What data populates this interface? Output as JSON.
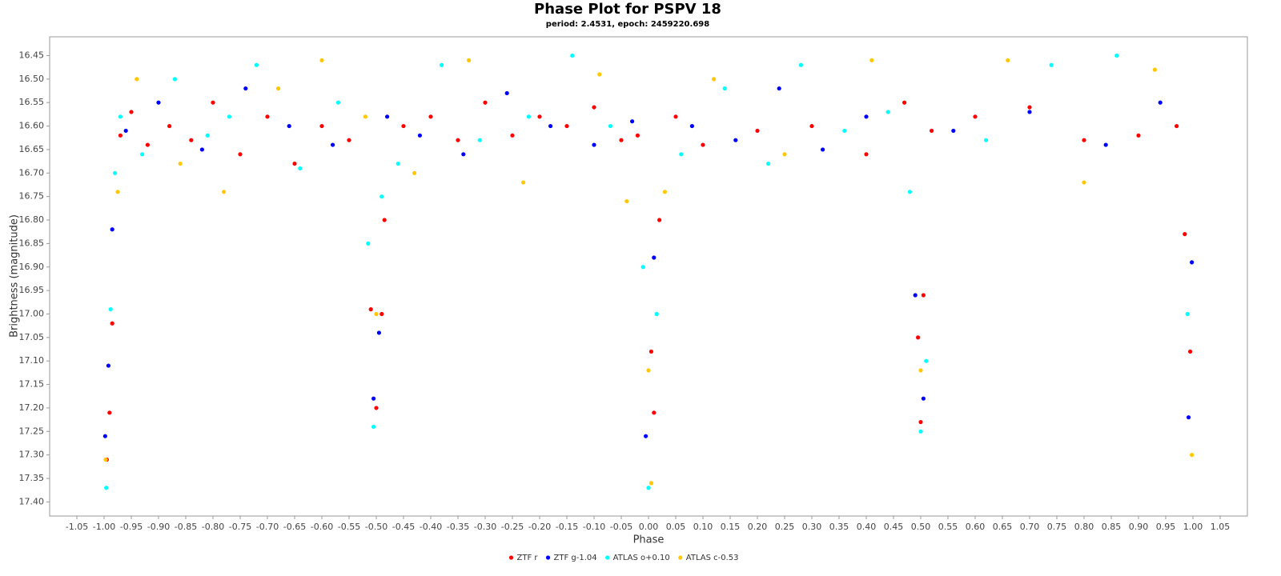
{
  "chart_data": {
    "type": "scatter",
    "title": "Phase Plot for PSPV 18",
    "subtitle": "period: 2.4531, epoch: 2459220.698",
    "x_label": "Phase",
    "y_label": "Brightness (magnitude)",
    "xlim": [
      -1.1,
      1.1
    ],
    "ylim": [
      17.43,
      16.41
    ],
    "grid": false,
    "legend": "bottom",
    "xticks": [
      -1.05,
      {
        "value": -1.0,
        "label": "-1.00"
      },
      -0.95,
      {
        "value": -0.9,
        "label": "-0.90"
      },
      -0.85,
      {
        "value": -0.8,
        "label": "-0.80"
      },
      -0.75,
      {
        "value": -0.7,
        "label": "-0.70"
      },
      -0.65,
      {
        "value": -0.6,
        "label": "-0.60"
      },
      -0.55,
      {
        "value": -0.5,
        "label": "-0.50"
      },
      -0.45,
      {
        "value": -0.4,
        "label": "-0.40"
      },
      -0.35,
      {
        "value": -0.3,
        "label": "-0.30"
      },
      -0.25,
      {
        "value": -0.2,
        "label": "-0.20"
      },
      -0.15,
      {
        "value": -0.1,
        "label": "-0.10"
      },
      -0.05,
      {
        "value": 0,
        "label": "0.00"
      },
      0.05,
      {
        "value": 0.1,
        "label": "0.10"
      },
      0.15,
      {
        "value": 0.2,
        "label": "0.20"
      },
      0.25,
      {
        "value": 0.3,
        "label": "0.30"
      },
      0.35,
      {
        "value": 0.4,
        "label": "0.40"
      },
      0.45,
      {
        "value": 0.5,
        "label": "0.50"
      },
      0.55,
      {
        "value": 0.6,
        "label": "0.60"
      },
      0.65,
      {
        "value": 0.7,
        "label": "0.70"
      },
      0.75,
      {
        "value": 0.8,
        "label": "0.80"
      },
      0.85,
      {
        "value": 0.9,
        "label": "0.90"
      },
      0.95,
      {
        "value": 1,
        "label": "1.00"
      },
      1.05
    ],
    "yticks": [
      16.45,
      {
        "value": 16.5,
        "label": "16.50"
      },
      16.55,
      {
        "value": 16.6,
        "label": "16.60"
      },
      16.65,
      {
        "value": 16.7,
        "label": "16.70"
      },
      16.75,
      {
        "value": 16.8,
        "label": "16.80"
      },
      16.85,
      {
        "value": 16.9,
        "label": "16.90"
      },
      16.95,
      {
        "value": 17,
        "label": "17.00"
      },
      17.05,
      {
        "value": 17.1,
        "label": "17.10"
      },
      17.15,
      {
        "value": 17.2,
        "label": "17.20"
      },
      17.25,
      {
        "value": 17.3,
        "label": "17.30"
      },
      17.35,
      {
        "value": 17.4,
        "label": "17.40"
      }
    ],
    "series": [
      {
        "name": "ZTF r",
        "color": "#ff0000",
        "x": [
          -0.995,
          -0.99,
          -0.985,
          -0.97,
          -0.95,
          -0.92,
          -0.88,
          -0.84,
          -0.8,
          -0.75,
          -0.7,
          -0.65,
          -0.6,
          -0.55,
          -0.51,
          -0.5,
          -0.49,
          -0.485,
          -0.45,
          -0.4,
          -0.35,
          -0.3,
          -0.25,
          -0.2,
          -0.15,
          -0.1,
          -0.05,
          -0.02,
          0.005,
          0.01,
          0.02,
          0.05,
          0.1,
          0.2,
          0.3,
          0.4,
          0.47,
          0.495,
          0.5,
          0.505,
          0.52,
          0.6,
          0.7,
          0.8,
          0.9,
          0.97,
          0.985,
          0.995
        ],
        "values": [
          17.31,
          17.21,
          17.02,
          16.62,
          16.57,
          16.64,
          16.6,
          16.63,
          16.55,
          16.66,
          16.58,
          16.68,
          16.6,
          16.63,
          16.99,
          17.2,
          17.0,
          16.8,
          16.6,
          16.58,
          16.63,
          16.55,
          16.62,
          16.58,
          16.6,
          16.56,
          16.63,
          16.62,
          17.08,
          17.21,
          16.8,
          16.58,
          16.64,
          16.61,
          16.6,
          16.66,
          16.55,
          17.05,
          17.23,
          16.96,
          16.61,
          16.58,
          16.56,
          16.63,
          16.62,
          16.6,
          16.83,
          17.08
        ]
      },
      {
        "name": "ZTF g-1.04",
        "color": "#0000ff",
        "x": [
          -0.998,
          -0.992,
          -0.985,
          -0.96,
          -0.9,
          -0.82,
          -0.74,
          -0.66,
          -0.58,
          -0.505,
          -0.495,
          -0.48,
          -0.42,
          -0.34,
          -0.26,
          -0.18,
          -0.1,
          -0.03,
          -0.005,
          0.01,
          0.08,
          0.16,
          0.24,
          0.32,
          0.4,
          0.49,
          0.505,
          0.56,
          0.7,
          0.84,
          0.94,
          0.992,
          0.998
        ],
        "values": [
          17.26,
          17.11,
          16.82,
          16.61,
          16.55,
          16.65,
          16.52,
          16.6,
          16.64,
          17.18,
          17.04,
          16.58,
          16.62,
          16.66,
          16.53,
          16.6,
          16.64,
          16.59,
          17.26,
          16.88,
          16.6,
          16.63,
          16.52,
          16.65,
          16.58,
          16.96,
          17.18,
          16.61,
          16.57,
          16.64,
          16.55,
          17.22,
          16.89
        ]
      },
      {
        "name": "ATLAS o+0.10",
        "color": "#00ffff",
        "x": [
          -0.996,
          -0.988,
          -0.98,
          -0.97,
          -0.93,
          -0.87,
          -0.81,
          -0.77,
          -0.72,
          -0.64,
          -0.57,
          -0.515,
          -0.505,
          -0.49,
          -0.46,
          -0.38,
          -0.31,
          -0.22,
          -0.14,
          -0.07,
          -0.01,
          0.0,
          0.015,
          0.06,
          0.14,
          0.22,
          0.28,
          0.36,
          0.44,
          0.48,
          0.5,
          0.51,
          0.62,
          0.74,
          0.86,
          0.99
        ],
        "values": [
          17.37,
          16.99,
          16.7,
          16.58,
          16.66,
          16.5,
          16.62,
          16.58,
          16.47,
          16.69,
          16.55,
          16.85,
          17.24,
          16.75,
          16.68,
          16.47,
          16.63,
          16.58,
          16.45,
          16.6,
          16.9,
          17.37,
          17.0,
          16.66,
          16.52,
          16.68,
          16.47,
          16.61,
          16.57,
          16.74,
          17.25,
          17.1,
          16.63,
          16.47,
          16.45,
          17.0
        ]
      },
      {
        "name": "ATLAS c-0.53",
        "color": "#ffc800",
        "x": [
          -0.997,
          -0.975,
          -0.94,
          -0.86,
          -0.78,
          -0.68,
          -0.6,
          -0.52,
          -0.5,
          -0.43,
          -0.33,
          -0.23,
          -0.09,
          -0.04,
          0.0,
          0.005,
          0.03,
          0.12,
          0.25,
          0.41,
          0.5,
          0.66,
          0.8,
          0.93,
          0.998
        ],
        "values": [
          17.31,
          16.74,
          16.5,
          16.68,
          16.74,
          16.52,
          16.46,
          16.58,
          17.0,
          16.7,
          16.46,
          16.72,
          16.49,
          16.76,
          17.12,
          17.36,
          16.74,
          16.5,
          16.66,
          16.46,
          17.12,
          16.46,
          16.72,
          16.48,
          17.3
        ]
      }
    ]
  }
}
